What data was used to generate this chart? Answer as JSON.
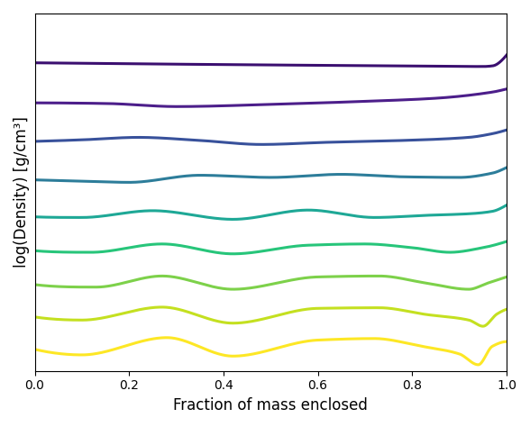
{
  "xlabel": "Fraction of mass enclosed",
  "ylabel": "log(Density) [g/cm³]",
  "xlim": [
    0.0,
    1.0
  ],
  "ylim": [
    -1.8,
    9.8
  ],
  "line_colors": [
    "#3b0f70",
    "#4c1e8a",
    "#38519b",
    "#2d7d9a",
    "#1ea896",
    "#27c57a",
    "#7dd14a",
    "#c4e020",
    "#fde725"
  ],
  "line_width": 2.2,
  "x_ticks": [
    0.0,
    0.2,
    0.4,
    0.6,
    0.8,
    1.0
  ],
  "figsize": [
    5.88,
    4.74
  ],
  "dpi": 100
}
